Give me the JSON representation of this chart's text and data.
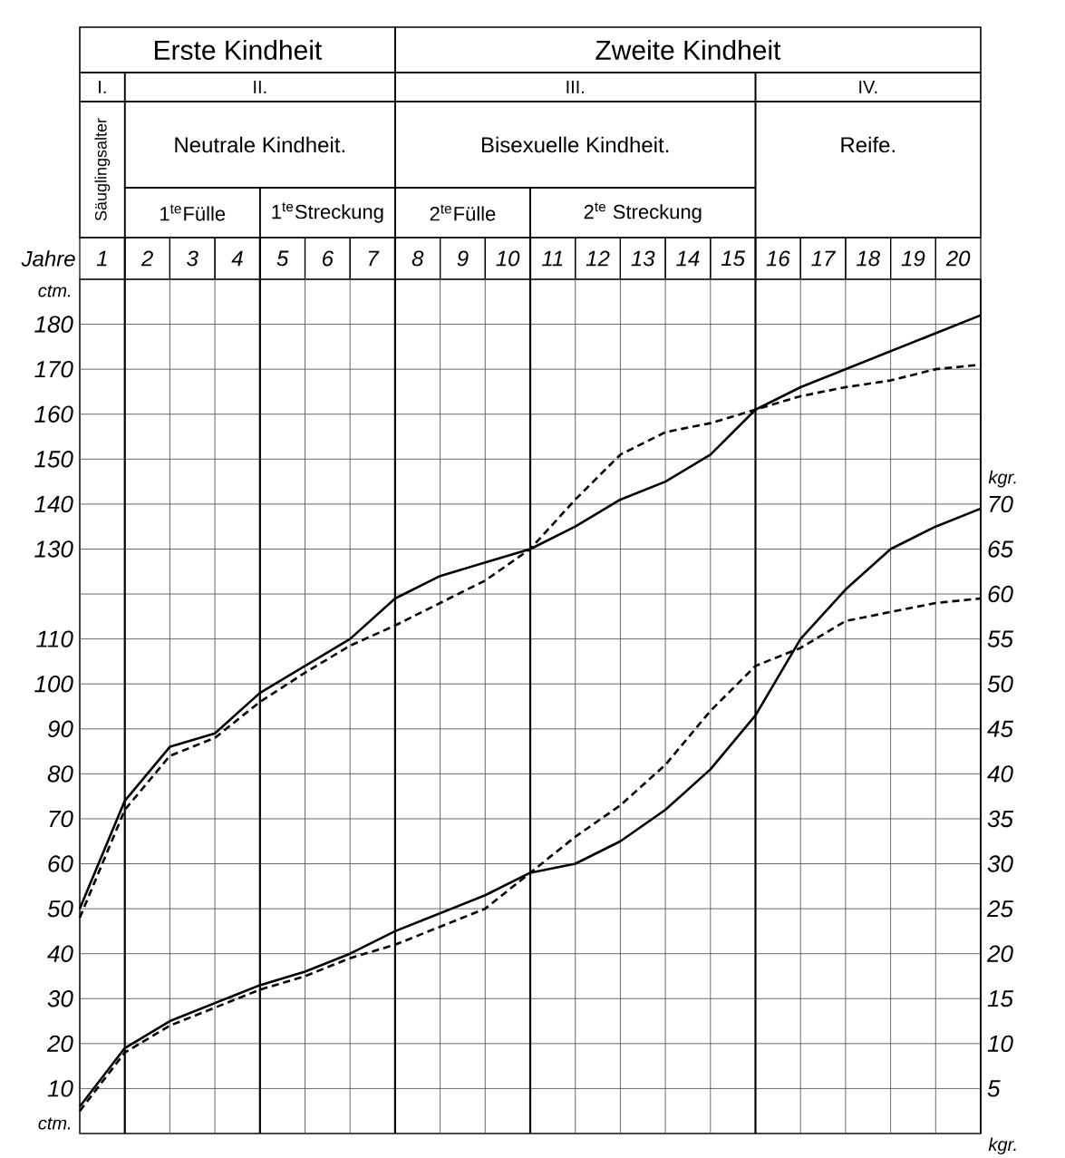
{
  "chart_data": {
    "type": "line",
    "xlabel": "Jahre",
    "ylabel": "ctm.",
    "y2label": "kgr.",
    "x": [
      0,
      1,
      2,
      3,
      4,
      5,
      6,
      7,
      8,
      9,
      10,
      11,
      12,
      13,
      14,
      15,
      16,
      17,
      18,
      19,
      20
    ],
    "xlim": [
      0,
      20
    ],
    "xticks": [
      {
        "value": 0.5,
        "label": "1"
      },
      {
        "value": 1.5,
        "label": "2"
      },
      {
        "value": 2.5,
        "label": "3"
      },
      {
        "value": 3.5,
        "label": "4"
      },
      {
        "value": 4.5,
        "label": "5"
      },
      {
        "value": 5.5,
        "label": "6"
      },
      {
        "value": 6.5,
        "label": "7"
      },
      {
        "value": 7.5,
        "label": "8"
      },
      {
        "value": 8.5,
        "label": "9"
      },
      {
        "value": 9.5,
        "label": "10"
      },
      {
        "value": 10.5,
        "label": "11"
      },
      {
        "value": 11.5,
        "label": "12"
      },
      {
        "value": 12.5,
        "label": "13"
      },
      {
        "value": 13.5,
        "label": "14"
      },
      {
        "value": 14.5,
        "label": "15"
      },
      {
        "value": 15.5,
        "label": "16"
      },
      {
        "value": 16.5,
        "label": "17"
      },
      {
        "value": 17.5,
        "label": "18"
      },
      {
        "value": 18.5,
        "label": "19"
      },
      {
        "value": 19.5,
        "label": "20"
      }
    ],
    "ylim": [
      0,
      190
    ],
    "yticks": [
      10,
      20,
      30,
      40,
      50,
      60,
      70,
      80,
      90,
      100,
      110,
      130,
      140,
      150,
      160,
      170,
      180
    ],
    "y2lim": [
      0,
      95
    ],
    "y2ticks": [
      5,
      10,
      15,
      20,
      25,
      30,
      35,
      40,
      45,
      50,
      55,
      60,
      65,
      70
    ],
    "grid": true,
    "annotations": [
      "Erste Kindheit",
      "Zweite Kindheit",
      "I.",
      "II.",
      "III.",
      "IV.",
      "Säuglingsalter",
      "Neutrale Kindheit.",
      "Bisexuelle Kindheit.",
      "Reife.",
      "1$^{te}$Fülle",
      "1$^{te}$Streckung",
      "2$^{te}$Fülle",
      "2$^{te}$ Streckung"
    ],
    "series": [
      {
        "color": "#000000",
        "line_style": "solid",
        "values": [
          50,
          74,
          86,
          89,
          98,
          104,
          110,
          119,
          124,
          127,
          130,
          135,
          141,
          145,
          151,
          161,
          166,
          170,
          174,
          178,
          182
        ]
      },
      {
        "color": "#000000",
        "line_style": "dashed",
        "values": [
          48,
          72,
          84,
          88,
          96,
          102.5,
          108.5,
          113,
          118,
          123,
          130,
          141,
          151,
          156,
          158,
          161,
          164,
          166,
          167.5,
          170,
          171
        ]
      },
      {
        "color": "#000000",
        "line_style": "solid",
        "axis": "y2",
        "values": [
          3,
          9.5,
          12.5,
          14.5,
          16.5,
          18,
          20,
          22.5,
          24.5,
          26.5,
          29,
          30,
          32.5,
          36,
          40.5,
          46.5,
          55,
          60.5,
          65,
          67.5,
          69.5
        ]
      },
      {
        "color": "#000000",
        "line_style": "dashed",
        "axis": "y2",
        "values": [
          2.5,
          9,
          12,
          14,
          16,
          17.5,
          19.5,
          21,
          23,
          25,
          29,
          33,
          36.5,
          41,
          47,
          52,
          54,
          57,
          58,
          59,
          59.5
        ]
      }
    ]
  }
}
